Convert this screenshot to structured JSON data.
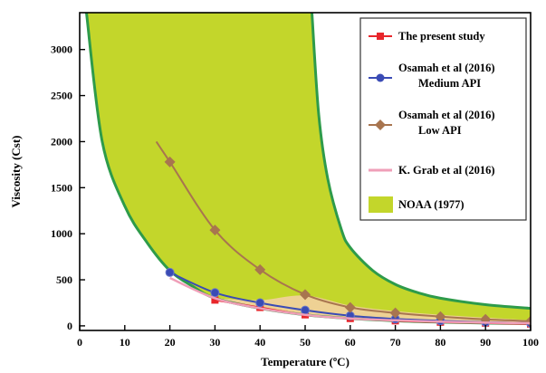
{
  "chart_data": {
    "type": "line",
    "title": "",
    "xlabel": "Temperature (ºC)",
    "ylabel": "Viscosity (Cst)",
    "xlim": [
      0,
      100
    ],
    "ylim": [
      -50,
      3400
    ],
    "x_ticks": [
      "0",
      "10",
      "20",
      "30",
      "40",
      "50",
      "60",
      "70",
      "80",
      "90",
      "100"
    ],
    "y_ticks": [
      "0",
      "500",
      "1000",
      "1500",
      "2000",
      "2500",
      "3000"
    ],
    "grid": false,
    "legend_position": "top-right",
    "series": [
      {
        "name": "The present study",
        "marker": "square",
        "color": "#e8262b",
        "x": [
          30,
          40,
          50,
          60,
          70,
          80,
          90,
          100
        ],
        "y": [
          280,
          200,
          120,
          80,
          55,
          40,
          30,
          20
        ]
      },
      {
        "name": "Osamah et al (2016) Medium API",
        "legend_lines": [
          "Osamah et al (2016)",
          "Medium API"
        ],
        "marker": "circle",
        "color": "#3a4bb5",
        "x": [
          20,
          30,
          40,
          50,
          60,
          70,
          80,
          90,
          100
        ],
        "y": [
          580,
          360,
          250,
          170,
          110,
          75,
          55,
          40,
          30
        ]
      },
      {
        "name": "Osamah et al (2016) Low API",
        "legend_lines": [
          "Osamah et al (2016)",
          "Low API"
        ],
        "marker": "diamond",
        "color": "#a8754f",
        "x": [
          20,
          30,
          40,
          50,
          60,
          70,
          80,
          90,
          100
        ],
        "y": [
          1780,
          1040,
          610,
          340,
          200,
          140,
          100,
          70,
          50
        ]
      },
      {
        "name": "K. Grab et al (2016)",
        "marker": "none",
        "color": "#ef9fb8",
        "x": [
          20,
          30,
          40,
          50,
          60,
          70,
          80,
          90,
          100
        ],
        "y": [
          520,
          300,
          190,
          120,
          80,
          60,
          45,
          35,
          28
        ]
      },
      {
        "name": "NOAA (1977)",
        "type": "band",
        "color": "#c3d62b",
        "edge_color": "#2e9b4a",
        "lower": {
          "x": [
            1.5,
            5,
            10,
            15,
            20,
            25,
            30,
            40,
            50,
            60,
            70,
            80,
            90,
            100
          ],
          "y": [
            3400,
            2000,
            1300,
            900,
            600,
            430,
            300,
            190,
            120,
            80,
            55,
            40,
            30,
            25
          ]
        },
        "upper": {
          "x": [
            51.5,
            53,
            55,
            58,
            60,
            65,
            70,
            75,
            80,
            90,
            100
          ],
          "y": [
            3400,
            2300,
            1600,
            1050,
            850,
            600,
            450,
            360,
            300,
            230,
            190
          ]
        }
      }
    ],
    "highlight_region": {
      "color": "#f3d0a0",
      "x": [
        30,
        40,
        50,
        60,
        70,
        80,
        90,
        100
      ],
      "upper": [
        300,
        280,
        330,
        220,
        160,
        120,
        90,
        60
      ],
      "lower": [
        280,
        200,
        120,
        80,
        55,
        40,
        30,
        20
      ]
    }
  }
}
